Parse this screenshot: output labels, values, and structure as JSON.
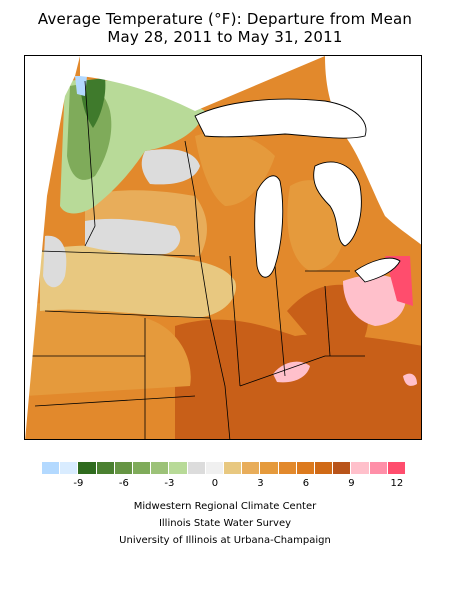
{
  "title": {
    "line1": "Average Temperature (°F): Departure from Mean",
    "line2": "May 28, 2011 to May 31, 2011"
  },
  "legend": {
    "colors": [
      "#b3d9ff",
      "#d9ecff",
      "#2f6b1e",
      "#4a8030",
      "#669544",
      "#7fab5a",
      "#9cc278",
      "#b8da98",
      "#dcdcdc",
      "#f0f0f0",
      "#e8c880",
      "#e8ad5a",
      "#e59a3c",
      "#e2892c",
      "#dc7a1e",
      "#d06a16",
      "#b9541a",
      "#ffc0cb",
      "#ff8fa8",
      "#ff4d6d"
    ],
    "tick_labels": [
      "-9",
      "-6",
      "-3",
      "0",
      "3",
      "6",
      "9",
      "12"
    ]
  },
  "map_colors": {
    "water": "#ffffff",
    "base": "#e2892c",
    "deep_orange": "#c85f18",
    "orange": "#e59a3c",
    "light_orange": "#e8ad5a",
    "tan": "#e8c880",
    "gray": "#dcdcdc",
    "light_green": "#b8da98",
    "green": "#7fab5a",
    "dark_green": "#3f7a2c",
    "pink": "#ffc0cb",
    "hot_pink": "#ff4d6d",
    "light_blue": "#b3d9ff"
  },
  "credits": [
    "Midwestern Regional Climate Center",
    "Illinois State Water Survey",
    "University of Illinois at Urbana-Champaign"
  ]
}
